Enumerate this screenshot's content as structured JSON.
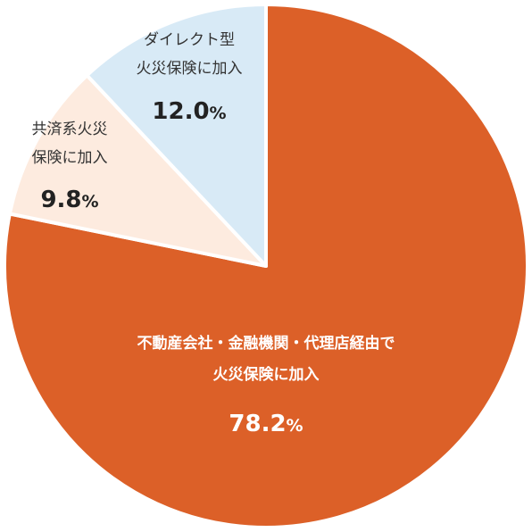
{
  "chart_data": {
    "type": "pie",
    "slices": [
      {
        "label_lines": [
          "不動産会社・金融機関・代理店経由で",
          "火災保険に加入"
        ],
        "value": 78.2,
        "value_text": "78.2",
        "unit": "%",
        "color": "#dc6028"
      },
      {
        "label_lines": [
          "共済系火災",
          "保険に加入"
        ],
        "value": 9.8,
        "value_text": "9.8",
        "unit": "%",
        "color": "#fdebdf"
      },
      {
        "label_lines": [
          "ダイレクト型",
          "火災保険に加入"
        ],
        "value": 12.0,
        "value_text": "12.0",
        "unit": "%",
        "color": "#d8eaf6"
      }
    ]
  }
}
